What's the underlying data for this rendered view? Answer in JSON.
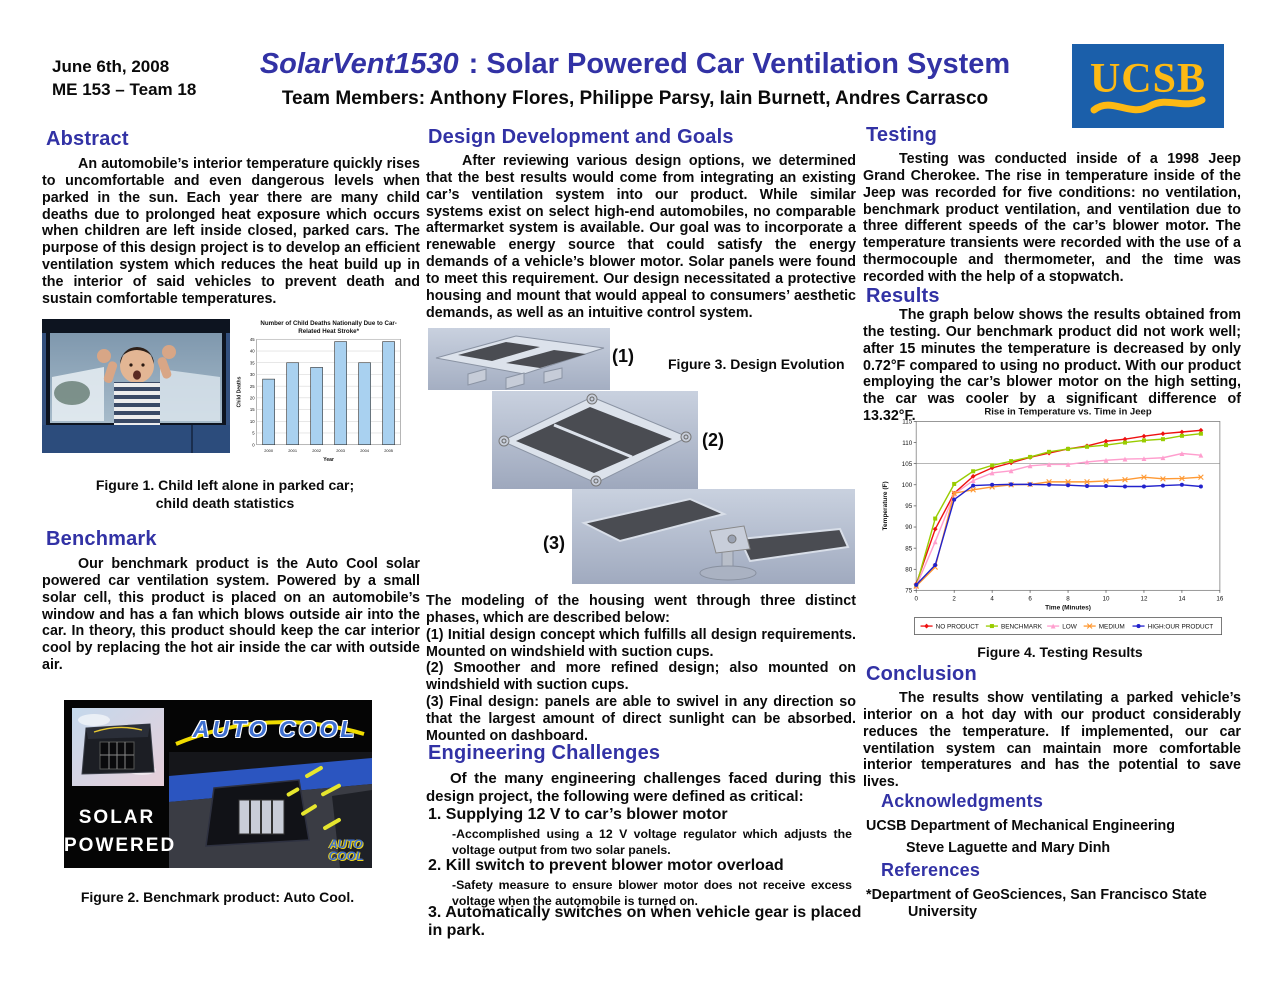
{
  "colors": {
    "heading_blue": "#3232A5",
    "logo_blue": "#1B5FAA",
    "logo_gold": "#FDB913"
  },
  "header": {
    "date": "June 6th, 2008",
    "course": "ME 153 – Team 18",
    "title_italic": "SolarVent1530",
    "title_rest": " : Solar Powered Car Ventilation System",
    "team": "Team Members: Anthony Flores, Philippe Parsy, Iain Burnett, Andres Carrasco"
  },
  "logo": {
    "text": "UCSB"
  },
  "abstract": {
    "heading": "Abstract",
    "body": "An automobile’s interior temperature quickly rises to uncomfortable and even dangerous levels when parked in the sun.  Each year there are many child deaths due to prolonged heat exposure which occurs when children are left inside closed, parked cars. The purpose of this design project is to develop an efficient ventilation system which reduces the heat build up in the interior of said vehicles to prevent death and sustain comfortable temperatures."
  },
  "figure1": {
    "caption_line1": "Figure 1. Child left alone in parked car;",
    "caption_line2": "child death statistics"
  },
  "benchmark": {
    "heading": "Benchmark",
    "body": "Our benchmark product is the Auto Cool solar powered car ventilation system.  Powered by a small solar cell, this product is placed on an automobile’s window and has a fan which blows outside air into the car.  In theory, this product should keep the car interior cool by replacing the hot air inside the car with outside air."
  },
  "figure2": {
    "solar_line1": "SOLAR",
    "solar_line2": "POWERED",
    "auto_cool": "AUTO COOL",
    "watermark_line1": "AUTO",
    "watermark_line2": "COOL",
    "caption": "Figure 2. Benchmark product: Auto Cool."
  },
  "design": {
    "heading": "Design Development and Goals",
    "body": "After reviewing various design options, we determined that the best results would come from integrating an existing car’s ventilation system into our product.  While similar systems exist on select high-end automobiles, no comparable aftermarket system is available. Our goal was to incorporate a renewable energy source that could satisfy the energy demands of a vehicle’s blower motor. Solar panels were found to meet this requirement. Our design necessitated a protective housing and mount that would appeal to consumers’ aesthetic demands, as well as an intuitive control system.",
    "fig3_num1": "(1)",
    "fig3_num2": "(2)",
    "fig3_num3": "(3)",
    "fig3_label": "Figure 3. Design Evolution",
    "modeling_intro": "The modeling of the housing went through three distinct phases, which are described below:",
    "phase1": "(1) Initial design concept which fulfills all design requirements. Mounted on windshield with suction cups.",
    "phase2": "(2) Smoother and more refined design; also mounted on windshield with suction cups.",
    "phase3": "(3) Final design: panels are able to swivel in any direction so that the largest amount of direct sunlight can be absorbed.  Mounted on dashboard."
  },
  "engineering": {
    "heading": "Engineering Challenges",
    "intro": "Of the many engineering challenges faced during this design project, the following were defined as critical:",
    "items": [
      {
        "title": "1. Supplying 12 V to car’s blower motor",
        "detail": "-Accomplished using a 12 V voltage regulator which adjusts the voltage output from two solar panels."
      },
      {
        "title": "2. Kill switch to prevent blower motor overload",
        "detail": "-Safety measure to ensure blower motor does not receive excess voltage when the automobile is turned on."
      },
      {
        "title": "3. Automatically switches on when vehicle gear is placed in park."
      }
    ]
  },
  "testing": {
    "heading": "Testing",
    "body": "Testing was conducted inside of a 1998 Jeep Grand Cherokee.  The rise in temperature inside of the Jeep was recorded for five conditions: no ventilation, benchmark product ventilation, and ventilation due to three different speeds of the car’s blower motor.  The temperature transients were recorded with the use of a thermocouple and thermometer, and the time was recorded with the help of a stopwatch."
  },
  "results": {
    "heading": "Results",
    "body": "The graph below shows the results obtained from the testing. Our benchmark product did not work well; after 15 minutes the temperature is decreased by only 0.72°F compared to using no product. With our product employing the car’s blower motor on the high setting, the car was cooler by a significant difference of 13.32°F."
  },
  "figure4": {
    "caption": "Figure 4. Testing Results"
  },
  "conclusion": {
    "heading": "Conclusion",
    "body": "The results show ventilating a parked vehicle’s interior on a hot day with our product considerably reduces the temperature. If implemented, our car ventilation system can maintain more comfortable interior temperatures and has the potential to save lives."
  },
  "acknowledgments": {
    "heading": "Acknowledgments",
    "line1": "UCSB Department of Mechanical Engineering",
    "line2": "Steve Laguette and Mary Dinh"
  },
  "references": {
    "heading": "References",
    "body": "*Department of GeoSciences, San Francisco State University"
  },
  "chart_data": [
    {
      "id": "child-deaths-bar",
      "type": "bar",
      "title": "Number of Child Deaths Nationally Due to Car-Related Heat Stroke*",
      "title_lines": [
        "Number of Child Deaths Nationally Due to Car-",
        "Related Heat Stroke*"
      ],
      "categories": [
        "2000",
        "2001",
        "2002",
        "2003",
        "2004",
        "2005"
      ],
      "values": [
        28,
        35,
        33,
        44,
        35,
        44
      ],
      "xlabel": "Year",
      "ylabel": "Child Deaths",
      "ylim": [
        0,
        45
      ],
      "ytick_step": 5,
      "bar_color": "#A9D1F0",
      "grid": true,
      "legend_position": "none"
    },
    {
      "id": "temperature-line",
      "type": "line",
      "title": "Rise in Temperature vs. Time in Jeep",
      "xlabel": "Time (Minutes)",
      "ylabel": "Temperature (F)",
      "xlim": [
        0,
        16
      ],
      "ylim": [
        75,
        115
      ],
      "xtick_step": 2,
      "ytick_step": 5,
      "gridline_y": 105,
      "grid": false,
      "legend_position": "bottom",
      "x": [
        0,
        1,
        2,
        3,
        4,
        5,
        6,
        7,
        8,
        9,
        10,
        11,
        12,
        13,
        14,
        15
      ],
      "series": [
        {
          "name": "NO PRODUCT",
          "color": "#EE1111",
          "marker": "diamond",
          "values": [
            76.5,
            89.5,
            98,
            102,
            104,
            105.2,
            106.5,
            107.5,
            108.5,
            109.2,
            110.3,
            110.8,
            111.5,
            112.1,
            112.5,
            112.9
          ]
        },
        {
          "name": "BENCHMARK",
          "color": "#99CC00",
          "marker": "square",
          "values": [
            76,
            92,
            100.2,
            103.2,
            104.6,
            105.6,
            106.6,
            107.8,
            108.5,
            109,
            109.4,
            110,
            110.5,
            110.8,
            111.6,
            112.1
          ]
        },
        {
          "name": "LOW",
          "color": "#FF9ECE",
          "marker": "triangle",
          "values": [
            76,
            86.5,
            97.8,
            101,
            102.8,
            103.3,
            104.5,
            104.8,
            104.8,
            105.4,
            105.8,
            106.1,
            106.2,
            106.4,
            107.4,
            107
          ]
        },
        {
          "name": "MEDIUM",
          "color": "#FF9933",
          "marker": "x",
          "values": [
            76,
            80.5,
            98,
            98.8,
            99.5,
            100,
            100.1,
            100.7,
            100.7,
            100.7,
            100.9,
            101.2,
            101.8,
            101.4,
            101.5,
            101.8
          ]
        },
        {
          "name": "HIGH:OUR PRODUCT",
          "color": "#2222CC",
          "marker": "circle",
          "values": [
            76.3,
            81,
            96.5,
            99.8,
            100,
            100.1,
            100.1,
            100,
            99.9,
            99.7,
            99.7,
            99.6,
            99.6,
            99.8,
            100,
            99.6
          ]
        }
      ]
    }
  ]
}
